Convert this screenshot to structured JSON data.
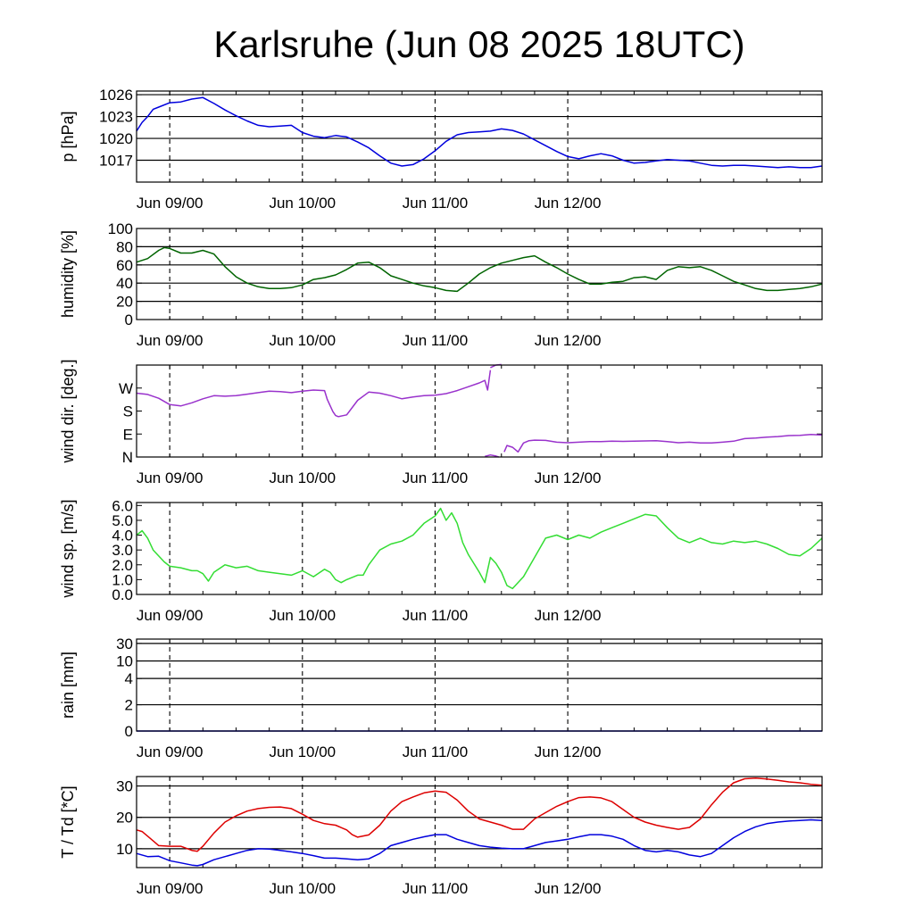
{
  "title": "Karlsruhe (Jun 08 2025 18UTC)",
  "time_axis": {
    "start": "2025-06-08T18:00Z",
    "end": "2025-06-12T22:00Z",
    "major_ticks": [
      "Jun 09/00",
      "Jun 10/00",
      "Jun 11/00",
      "Jun 12/00"
    ]
  },
  "chart_data": [
    {
      "id": "pressure",
      "type": "line",
      "ylabel": "p [hPa]",
      "ylim": [
        1014,
        1026.5
      ],
      "yticks": [
        1017,
        1020,
        1023,
        1026
      ],
      "ytick_labels": [
        "1017",
        "1020",
        "1023",
        "1026"
      ],
      "grid": "horizontal at y ticks, dashed vertical at day boundaries",
      "series": [
        {
          "color": "#0000dd",
          "x": [
            0,
            1,
            2,
            3,
            4,
            6,
            8,
            10,
            12,
            14,
            16,
            18,
            20,
            22,
            24,
            26,
            28,
            30,
            32,
            34,
            36,
            38,
            40,
            42,
            44,
            46,
            48,
            50,
            52,
            54,
            56,
            58,
            60,
            62,
            64,
            66,
            68,
            70,
            72,
            74,
            76,
            78,
            80,
            82,
            84,
            86,
            88,
            90,
            92,
            94,
            96,
            98,
            100,
            102,
            104,
            106,
            108,
            110,
            112,
            114,
            116,
            118,
            120,
            122,
            124
          ],
          "y": [
            1021.0,
            1022.2,
            1023.0,
            1024.0,
            1024.3,
            1024.9,
            1025.0,
            1025.4,
            1025.6,
            1024.8,
            1023.9,
            1023.1,
            1022.4,
            1021.8,
            1021.6,
            1021.7,
            1021.8,
            1020.8,
            1020.3,
            1020.1,
            1020.4,
            1020.2,
            1019.5,
            1018.7,
            1017.6,
            1016.6,
            1016.2,
            1016.4,
            1017.2,
            1018.3,
            1019.6,
            1020.5,
            1020.8,
            1020.9,
            1021.0,
            1021.3,
            1021.1,
            1020.6,
            1019.8,
            1019.0,
            1018.2,
            1017.5,
            1017.2,
            1017.6,
            1017.9,
            1017.6,
            1017.0,
            1016.6,
            1016.7,
            1016.9,
            1017.1,
            1017.0,
            1016.9,
            1016.6,
            1016.3,
            1016.2,
            1016.3,
            1016.3,
            1016.2,
            1016.1,
            1016.0,
            1016.1,
            1016.0,
            1016.0,
            1016.2
          ]
        }
      ]
    },
    {
      "id": "humidity",
      "type": "line",
      "ylabel": "humidity [%]",
      "ylim": [
        0,
        100
      ],
      "yticks": [
        0,
        20,
        40,
        60,
        80,
        100
      ],
      "ytick_labels": [
        "0",
        "20",
        "40",
        "60",
        "80",
        "100"
      ],
      "grid": "horizontal at y ticks, dashed vertical at day boundaries",
      "series": [
        {
          "color": "#006400",
          "x": [
            0,
            2,
            4,
            5,
            6,
            8,
            10,
            12,
            14,
            16,
            18,
            20,
            22,
            24,
            26,
            28,
            30,
            32,
            34,
            36,
            38,
            40,
            42,
            44,
            46,
            48,
            50,
            52,
            54,
            56,
            58,
            60,
            62,
            64,
            66,
            68,
            70,
            72,
            74,
            76,
            78,
            80,
            82,
            84,
            86,
            88,
            90,
            92,
            94,
            96,
            98,
            100,
            102,
            104,
            106,
            108,
            110,
            112,
            114,
            116,
            118,
            120,
            122,
            124
          ],
          "y": [
            63,
            67,
            76,
            79,
            78,
            73,
            73,
            76,
            72,
            58,
            47,
            40,
            36,
            34,
            34,
            35,
            38,
            44,
            46,
            49,
            55,
            62,
            63,
            57,
            48,
            44,
            40,
            37,
            35,
            32,
            31,
            40,
            50,
            57,
            62,
            65,
            68,
            70,
            63,
            57,
            50,
            44,
            39,
            39,
            41,
            42,
            46,
            47,
            44,
            54,
            58,
            57,
            58,
            54,
            48,
            42,
            38,
            34,
            32,
            32,
            33,
            34,
            36,
            39
          ]
        }
      ]
    },
    {
      "id": "wind_direction",
      "type": "line",
      "ylabel": "wind dir. [deg.]",
      "ylim": [
        0,
        360
      ],
      "yticks": [
        0,
        90,
        180,
        270
      ],
      "ytick_labels": [
        "N",
        "E",
        "S",
        "W"
      ],
      "grid": "dashed vertical at day boundaries",
      "series": [
        {
          "color": "#9932cc",
          "segments": [
            {
              "x": [
                0,
                2,
                4,
                6,
                8,
                10,
                12,
                14,
                16,
                18,
                20,
                22,
                24,
                26,
                28,
                30,
                32,
                34,
                34.5,
                35.5,
                36,
                36.5,
                38,
                40,
                42,
                44,
                46,
                48,
                50,
                52,
                54,
                56,
                58,
                60,
                62,
                63,
                63.5,
                64
              ],
              "y": [
                250,
                245,
                230,
                205,
                200,
                212,
                228,
                240,
                238,
                240,
                246,
                252,
                258,
                256,
                252,
                258,
                262,
                260,
                225,
                178,
                162,
                158,
                165,
                222,
                254,
                250,
                240,
                228,
                235,
                240,
                242,
                248,
                260,
                275,
                290,
                300,
                262,
                340
              ]
            },
            {
              "x": [
                64,
                65,
                66
              ],
              "y": [
                350,
                360,
                362
              ]
            },
            {
              "x": [
                63,
                64,
                65,
                65.5
              ],
              "y": [
                2,
                8,
                4,
                0
              ]
            },
            {
              "x": [
                66.5,
                67,
                68,
                69,
                70,
                71,
                72,
                74,
                76,
                78,
                80,
                82,
                84,
                86,
                88,
                90,
                92,
                94,
                96,
                98,
                100,
                102,
                104,
                106,
                108,
                110,
                112,
                114,
                116,
                118,
                120,
                122,
                124
              ],
              "y": [
                20,
                45,
                38,
                20,
                55,
                64,
                66,
                65,
                58,
                56,
                58,
                60,
                60,
                62,
                61,
                62,
                63,
                64,
                60,
                56,
                58,
                55,
                55,
                58,
                62,
                72,
                74,
                78,
                80,
                84,
                85,
                88,
                86
              ]
            }
          ]
        }
      ]
    },
    {
      "id": "wind_speed",
      "type": "line",
      "ylabel": "wind sp. [m/s]",
      "ylim": [
        0,
        6.2
      ],
      "yticks": [
        0.0,
        1.0,
        2.0,
        3.0,
        4.0,
        5.0,
        6.0
      ],
      "ytick_labels": [
        "0.0",
        "1.0",
        "2.0",
        "3.0",
        "4.0",
        "5.0",
        "6.0"
      ],
      "grid": "dashed vertical at day boundaries",
      "series": [
        {
          "color": "#33dd33",
          "x": [
            0,
            1,
            2,
            3,
            5,
            6,
            8,
            10,
            11,
            12,
            13,
            14,
            16,
            18,
            20,
            22,
            24,
            26,
            28,
            30,
            32,
            34,
            35,
            36,
            37,
            38,
            40,
            41,
            42,
            44,
            46,
            48,
            50,
            52,
            54,
            55,
            56,
            57,
            58,
            59,
            60,
            62,
            63,
            64,
            65,
            66,
            67,
            68,
            70,
            72,
            74,
            76,
            78,
            80,
            82,
            84,
            86,
            88,
            90,
            92,
            94,
            96,
            98,
            100,
            102,
            104,
            106,
            108,
            110,
            112,
            114,
            116,
            118,
            120,
            122,
            124
          ],
          "y": [
            4.0,
            4.3,
            3.8,
            3.0,
            2.2,
            1.9,
            1.8,
            1.6,
            1.6,
            1.4,
            0.9,
            1.5,
            2.0,
            1.8,
            1.9,
            1.6,
            1.5,
            1.4,
            1.3,
            1.6,
            1.2,
            1.7,
            1.5,
            1.0,
            0.8,
            1.0,
            1.3,
            1.3,
            2.0,
            3.0,
            3.4,
            3.6,
            4.0,
            4.8,
            5.3,
            5.8,
            5.0,
            5.5,
            4.8,
            3.5,
            2.7,
            1.5,
            0.8,
            2.5,
            2.1,
            1.5,
            0.6,
            0.4,
            1.2,
            2.5,
            3.8,
            4.0,
            3.7,
            4.0,
            3.8,
            4.2,
            4.5,
            4.8,
            5.1,
            5.4,
            5.3,
            4.5,
            3.8,
            3.5,
            3.8,
            3.5,
            3.4,
            3.6,
            3.5,
            3.6,
            3.4,
            3.1,
            2.7,
            2.6,
            3.1,
            3.8
          ]
        }
      ]
    },
    {
      "id": "rain",
      "type": "line",
      "ylabel": "rain [mm]",
      "ylim": [
        0,
        30
      ],
      "yticks": [
        0,
        2,
        4,
        10,
        30
      ],
      "ytick_labels": [
        "0",
        "2",
        "4",
        "10",
        "30"
      ],
      "scale": "nonlinear",
      "grid": "horizontal at y ticks, dashed vertical at day boundaries",
      "series": [
        {
          "color": "#0000dd",
          "x": [
            0,
            124
          ],
          "y": [
            0,
            0
          ]
        }
      ]
    },
    {
      "id": "temperature",
      "type": "line",
      "ylabel": "T / Td [*C]",
      "ylim": [
        4,
        33
      ],
      "yticks": [
        10,
        20,
        30
      ],
      "ytick_labels": [
        "10",
        "20",
        "30"
      ],
      "grid": "horizontal at y ticks, dashed vertical at day boundaries",
      "series": [
        {
          "id": "T",
          "color": "#dd0000",
          "x": [
            0,
            1,
            2,
            3,
            4,
            6,
            8,
            10,
            11,
            12,
            14,
            16,
            18,
            20,
            22,
            24,
            26,
            28,
            30,
            32,
            34,
            36,
            38,
            39,
            40,
            42,
            44,
            46,
            48,
            50,
            52,
            54,
            56,
            58,
            60,
            62,
            64,
            66,
            68,
            70,
            72,
            74,
            76,
            78,
            80,
            82,
            84,
            86,
            88,
            90,
            92,
            94,
            96,
            98,
            100,
            102,
            104,
            106,
            108,
            110,
            112,
            114,
            116,
            118,
            120,
            122,
            124
          ],
          "y": [
            16,
            15.5,
            14,
            12.5,
            11,
            10.8,
            10.8,
            9.5,
            9.2,
            10.8,
            15,
            18.5,
            20.5,
            22,
            22.8,
            23.2,
            23.3,
            22.8,
            21,
            19,
            18,
            17.5,
            16,
            14.5,
            13.7,
            14.4,
            17.5,
            22,
            25,
            26.5,
            27.8,
            28.4,
            28,
            25.5,
            22,
            19.5,
            18.5,
            17.5,
            16.2,
            16.2,
            19.5,
            21.5,
            23.5,
            25,
            26.3,
            26.5,
            26.2,
            25,
            22.5,
            20,
            18.5,
            17.5,
            16.8,
            16.2,
            16.8,
            19.5,
            24,
            28,
            31,
            32.3,
            32.5,
            32.2,
            31.8,
            31.3,
            31,
            30.5,
            30.2
          ]
        },
        {
          "id": "Td",
          "color": "#0000dd",
          "x": [
            0,
            2,
            4,
            6,
            8,
            10,
            11,
            12,
            14,
            16,
            18,
            20,
            22,
            24,
            26,
            28,
            30,
            32,
            34,
            36,
            38,
            40,
            42,
            44,
            46,
            48,
            50,
            52,
            54,
            56,
            58,
            60,
            62,
            64,
            66,
            68,
            70,
            72,
            74,
            76,
            78,
            80,
            82,
            84,
            86,
            88,
            90,
            92,
            94,
            96,
            98,
            100,
            102,
            104,
            106,
            108,
            110,
            112,
            114,
            116,
            118,
            120,
            122,
            124
          ],
          "y": [
            8.5,
            7.5,
            7.6,
            6.2,
            5.5,
            4.8,
            4.6,
            5.0,
            6.5,
            7.5,
            8.5,
            9.5,
            10.0,
            9.9,
            9.5,
            9.0,
            8.5,
            7.8,
            7.0,
            7.0,
            6.8,
            6.5,
            6.8,
            8.5,
            11.0,
            12.0,
            13.0,
            13.8,
            14.5,
            14.5,
            13.0,
            12.0,
            11.0,
            10.5,
            10.2,
            10.0,
            10.0,
            11.0,
            12.0,
            12.5,
            13.0,
            13.8,
            14.5,
            14.5,
            14.0,
            13.0,
            11.0,
            9.5,
            9.0,
            9.5,
            9.0,
            8.0,
            7.5,
            8.5,
            11.0,
            13.5,
            15.5,
            17.0,
            18.0,
            18.5,
            18.8,
            19.0,
            19.2,
            19.0
          ]
        }
      ]
    }
  ]
}
